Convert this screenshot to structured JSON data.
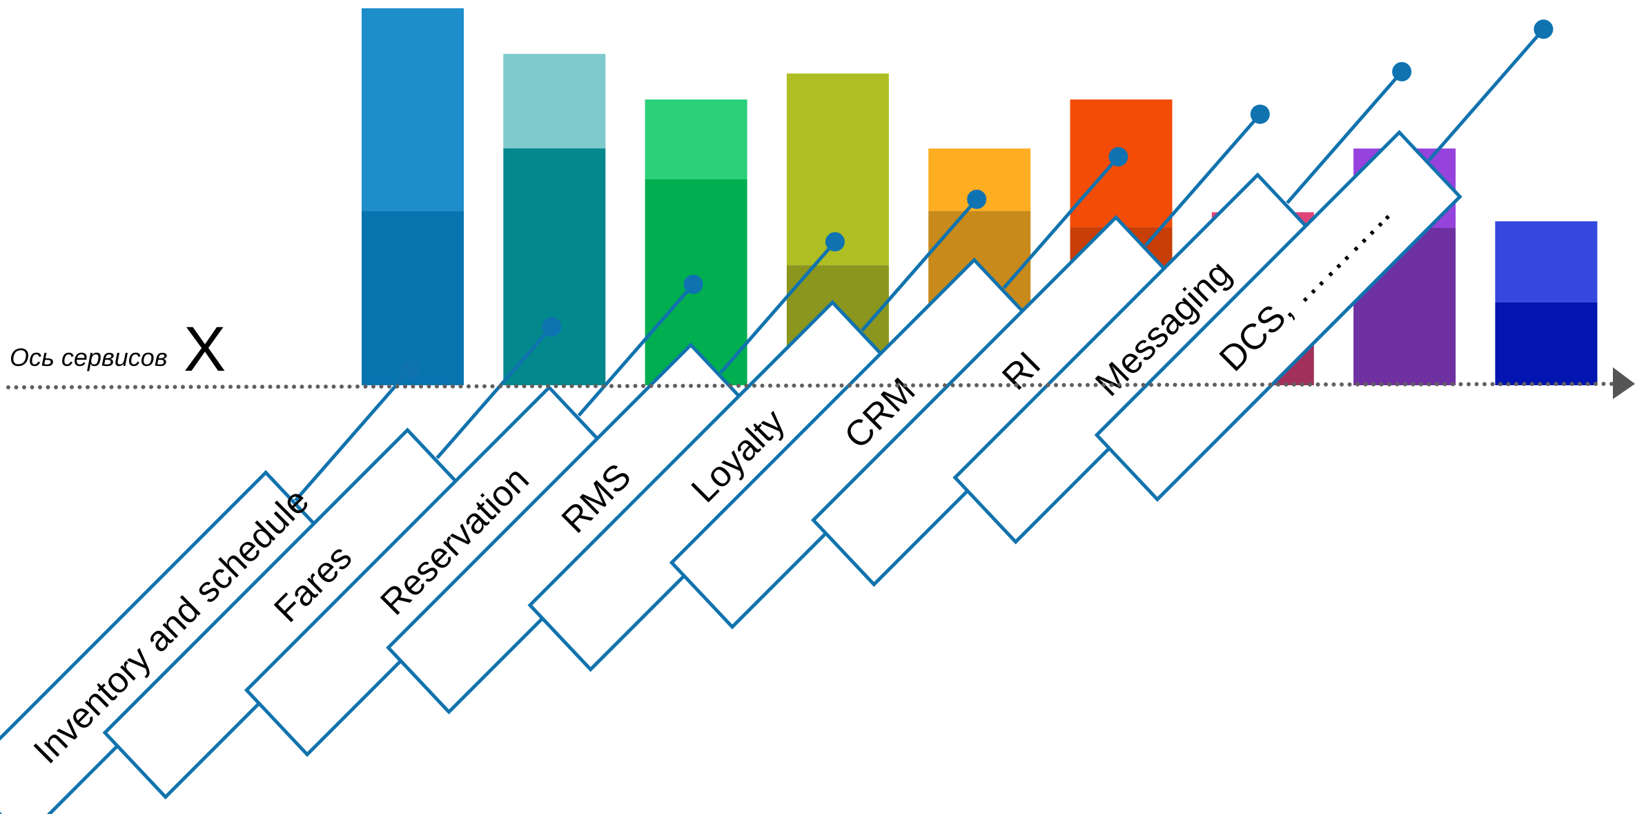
{
  "axis": {
    "title": "Ось сервисов",
    "letter": "X",
    "line_color": "#606060",
    "node_color": "#0E73B0",
    "callout_color": "#1173AE"
  },
  "services": [
    {
      "label": "Inventory and schedule",
      "light": "#1E8ECB",
      "dark": "#0774B0",
      "total": 1.0,
      "dark_share": 0.463
    },
    {
      "label": "Fares",
      "light": "#7DCBCC",
      "dark": "#03888E",
      "total": 0.879,
      "dark_share": 0.715
    },
    {
      "label": "Reservation",
      "light": "#2BD07A",
      "dark": "#01AE50",
      "total": 0.758,
      "dark_share": 0.721
    },
    {
      "label": "RMS",
      "light": "#AFBE23",
      "dark": "#8A961E",
      "total": 0.827,
      "dark_share": 0.385
    },
    {
      "label": "Loyalty",
      "light": "#FFAD21",
      "dark": "#C88A1A",
      "total": 0.628,
      "dark_share": 0.736
    },
    {
      "label": "CRM",
      "light": "#F34C07",
      "dark": "#C73E07",
      "total": 0.758,
      "dark_share": 0.553
    },
    {
      "label": "RI",
      "light": "#DE447A",
      "dark": "#A1315A",
      "total": 0.459,
      "dark_share": 0.423
    },
    {
      "label": "Messaging",
      "light": "#9643DD",
      "dark": "#6F31A1",
      "total": 0.628,
      "dark_share": 0.665
    },
    {
      "label": "DCS, ………..",
      "light": "#3547DF",
      "dark": "#0314B0",
      "total": 0.435,
      "dark_share": 0.506
    }
  ]
}
